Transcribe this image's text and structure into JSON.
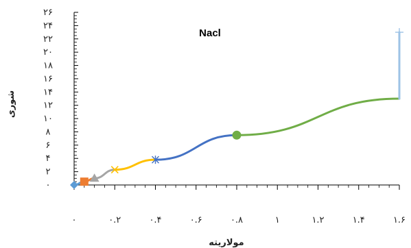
{
  "chart_data": {
    "type": "line",
    "title": "Nacl",
    "xlabel": "مولاریته",
    "ylabel": "شوری",
    "xlim": [
      0,
      1.6
    ],
    "ylim": [
      0,
      26
    ],
    "x_ticks": [
      0,
      0.2,
      0.4,
      0.6,
      0.8,
      1.0,
      1.2,
      1.4,
      1.6
    ],
    "x_tick_labels": [
      "۰",
      "۰.۲",
      "۰.۴",
      "۰.۶",
      "۰.۸",
      "۱",
      "۱.۲",
      "۱.۴",
      "۱.۶"
    ],
    "y_ticks": [
      0,
      2,
      4,
      6,
      8,
      10,
      12,
      14,
      16,
      18,
      20,
      22,
      24,
      26
    ],
    "y_tick_labels": [
      "۰",
      "۲",
      "۴",
      "۶",
      "۸",
      "۱۰",
      "۱۲",
      "۱۴",
      "۱۶",
      "۱۸",
      "۲۰",
      "۲۲",
      "۲۴",
      "۲۶"
    ],
    "grid": false,
    "legend": "none",
    "series": [
      {
        "color": "#5b9bd5",
        "marker": "diamond",
        "x": [
          0,
          0.05
        ],
        "y": [
          0,
          0.5
        ]
      },
      {
        "color": "#ed7d31",
        "marker": "square",
        "x": [
          0.05,
          0.1
        ],
        "y": [
          0.5,
          1.0
        ]
      },
      {
        "color": "#a5a5a5",
        "marker": "triangle",
        "x": [
          0.1,
          0.2
        ],
        "y": [
          1.0,
          2.3
        ]
      },
      {
        "color": "#ffc000",
        "marker": "x",
        "x": [
          0.2,
          0.4
        ],
        "y": [
          2.3,
          3.8
        ]
      },
      {
        "color": "#4472c4",
        "marker": "star",
        "x": [
          0.4,
          0.8
        ],
        "y": [
          3.8,
          7.5
        ]
      },
      {
        "color": "#70ad47",
        "marker": "circle",
        "x": [
          0.8,
          1.6
        ],
        "y": [
          7.5,
          13.0
        ]
      },
      {
        "color": "#9dc3e6",
        "marker": "plus",
        "x": [
          1.6,
          1.6
        ],
        "y": [
          13.0,
          23.0
        ]
      }
    ]
  }
}
